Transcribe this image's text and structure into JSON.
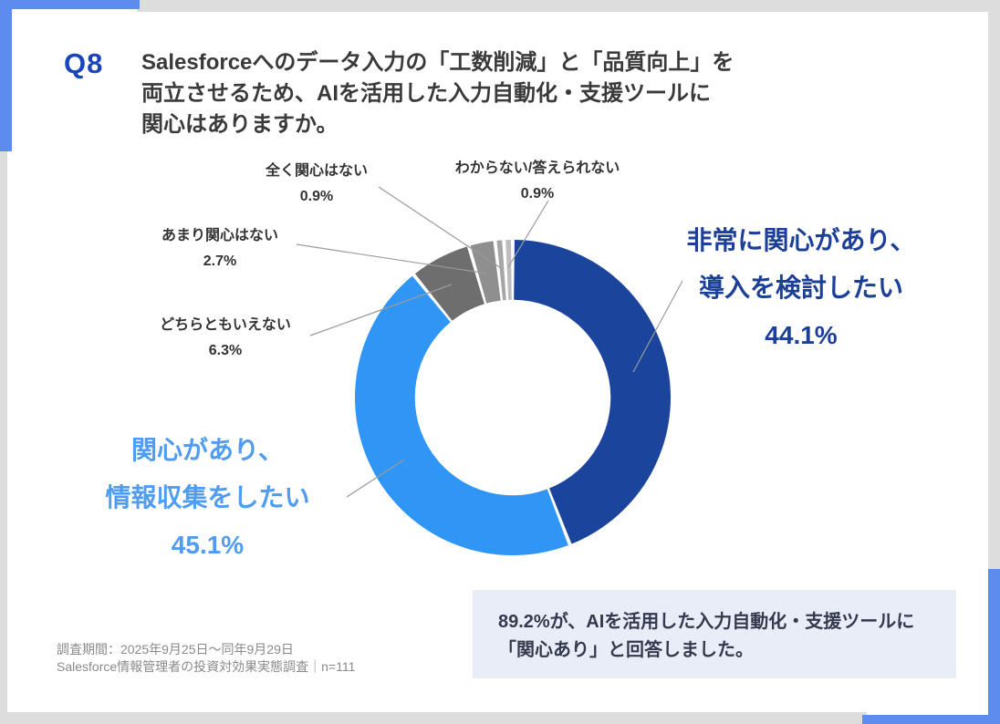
{
  "header": {
    "q_label": "Q8",
    "title_lines": [
      "Salesforceへのデータ入力の「工数削減」と「品質向上」を",
      "両立させるため、AIを活用した入力自動化・支援ツールに",
      "関心はありますか。"
    ]
  },
  "chart_data": {
    "type": "pie",
    "donut": true,
    "start_angle_deg": 0,
    "direction": "clockwise",
    "inner_radius_ratio": 0.62,
    "legend_position": "none",
    "slices": [
      {
        "label": "非常に関心があり、導入を検討したい",
        "lines": [
          "非常に関心があり、",
          "導入を検討したい"
        ],
        "pct_text": "44.1%",
        "value": 44.1,
        "color": "#1b449c"
      },
      {
        "label": "関心があり、情報収集をしたい",
        "lines": [
          "関心があり、",
          "情報収集をしたい"
        ],
        "pct_text": "45.1%",
        "value": 45.1,
        "color": "#2f96f5"
      },
      {
        "label": "どちらともいえない",
        "lines": [
          "どちらともいえない"
        ],
        "pct_text": "6.3%",
        "value": 6.3,
        "color": "#6e6e6e"
      },
      {
        "label": "あまり関心はない",
        "lines": [
          "あまり関心はない"
        ],
        "pct_text": "2.7%",
        "value": 2.7,
        "color": "#8f8f8f"
      },
      {
        "label": "全く関心はない",
        "lines": [
          "全く関心はない"
        ],
        "pct_text": "0.9%",
        "value": 0.9,
        "color": "#a6a6a6"
      },
      {
        "label": "わからない/答えられない",
        "lines": [
          "わからない/答えられない"
        ],
        "pct_text": "0.9%",
        "value": 0.9,
        "color": "#bdbdbd"
      }
    ]
  },
  "callout": {
    "line1": "89.2%が、AIを活用した入力自動化・支援ツールに",
    "line2": "「関心あり」と回答しました。"
  },
  "footer": {
    "line1": "調査期間：2025年9月25日～同年9月29日",
    "line2": "Salesforce情報管理者の投資対効果実態調査｜n=111"
  },
  "colors": {
    "accent_blue": "#5b8cee",
    "frame_gray": "#dddddd",
    "q_label_blue": "#1c45b8",
    "title_text": "#3a3a3a",
    "big_label_dark_blue": "#1c4098",
    "big_label_light_blue": "#4f9cf0",
    "small_label_text": "#333333",
    "leader_line": "#9b9b9b",
    "callout_bg": "#e9edf8",
    "callout_text": "#333a4d",
    "footer_text": "#8a8a8a"
  }
}
